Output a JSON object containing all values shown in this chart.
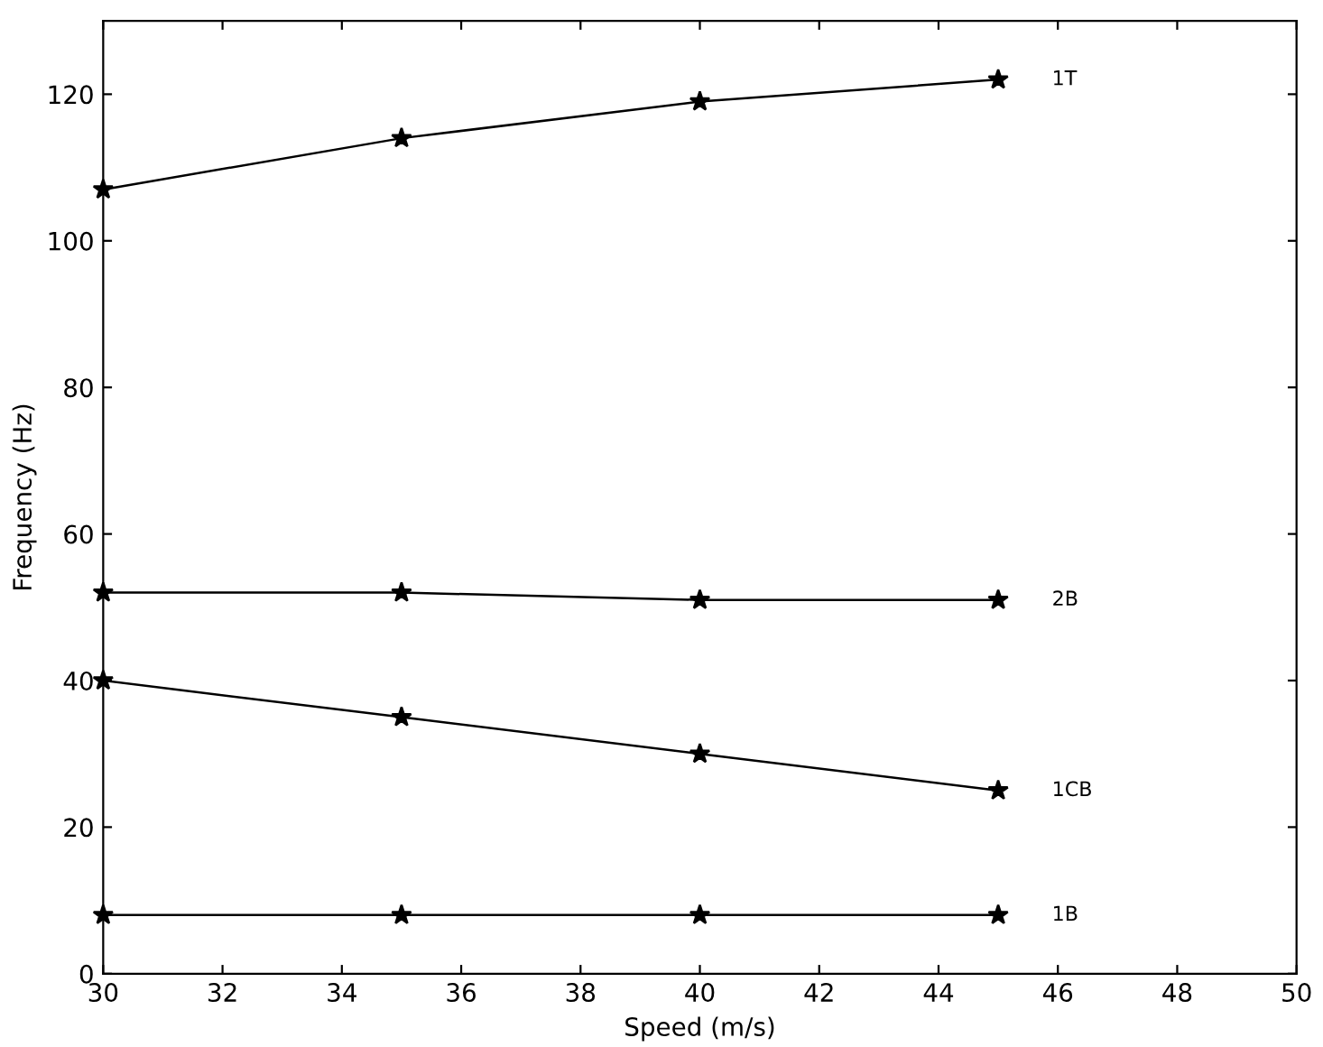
{
  "chart_data": {
    "type": "line",
    "xlabel": "Speed (m/s)",
    "ylabel": "Frequency (Hz)",
    "x": [
      30,
      35,
      40,
      45
    ],
    "series": [
      {
        "name": "1T",
        "color": "#000000",
        "values": [
          107,
          114,
          119,
          122
        ]
      },
      {
        "name": "2B",
        "color": "#000000",
        "values": [
          52,
          52,
          51,
          51
        ]
      },
      {
        "name": "1CB",
        "color": "#000000",
        "values": [
          40,
          35,
          30,
          25
        ]
      },
      {
        "name": "1B",
        "color": "#000000",
        "values": [
          8,
          8,
          8,
          8
        ]
      }
    ],
    "xlim": [
      30,
      50
    ],
    "xticks": [
      30,
      32,
      34,
      36,
      38,
      40,
      42,
      44,
      46,
      48,
      50
    ],
    "ylim": [
      0,
      130
    ],
    "yticks": [
      0,
      20,
      40,
      60,
      80,
      100,
      120
    ],
    "marker": "star",
    "line_style": "solid",
    "grid": false,
    "legend": false
  }
}
